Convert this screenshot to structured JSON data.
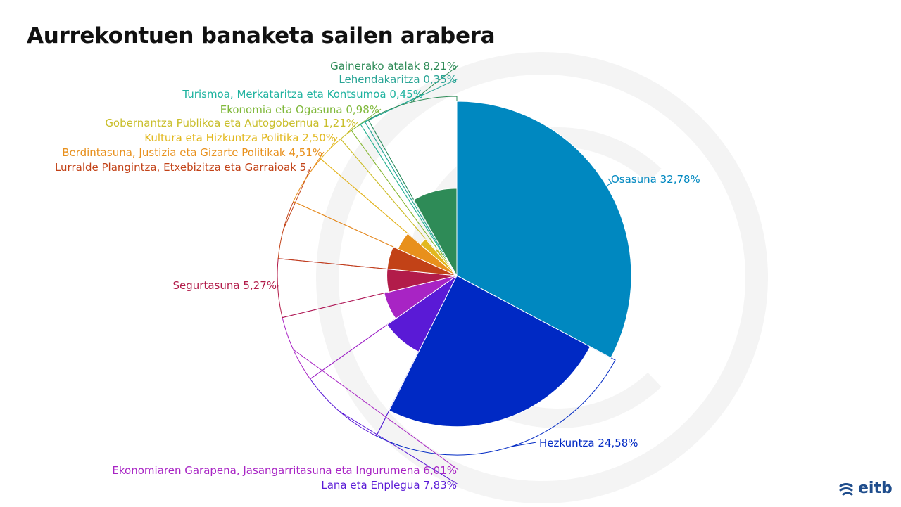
{
  "title": "Aurrekontuen banaketa sailen arabera",
  "brand": "eitb",
  "chart_data": {
    "type": "pie",
    "variant": "polar-area",
    "title": "Aurrekontuen banaketa sailen arabera",
    "unit": "%",
    "slices": [
      {
        "label": "Osasuna 32,78%",
        "name": "Osasuna",
        "value": 32.78,
        "color": "#0088c0"
      },
      {
        "label": "Hezkuntza 24,58%",
        "name": "Hezkuntza",
        "value": 24.58,
        "color": "#0029c4"
      },
      {
        "label": "Lana eta Enplegua 7,83%",
        "name": "Lana eta Enplegua",
        "value": 7.83,
        "color": "#5a1ad6"
      },
      {
        "label": "Ekonomiaren Garapena, Jasangarritasuna eta Ingurumena 6,01%",
        "name": "Ekonomiaren Garapena, Jasangarritasuna eta Ingurumena",
        "value": 6.01,
        "color": "#a824c4"
      },
      {
        "label": "Segurtasuna 5,27%",
        "name": "Segurtasuna",
        "value": 5.27,
        "color": "#b21c4a"
      },
      {
        "label": "Lurralde Plangintza, Etxebizitza eta Garraioak 5,",
        "name": "Lurralde Plangintza, Etxebizitza eta Garraioak",
        "value": 5.26,
        "color": "#c24217"
      },
      {
        "label": "Berdintasuna, Justizia eta Gizarte Politikak 4,51%",
        "name": "Berdintasuna, Justizia eta Gizarte Politikak",
        "value": 4.51,
        "color": "#e8901c"
      },
      {
        "label": "Kultura eta Hizkuntza Politika 2,50%",
        "name": "Kultura eta Hizkuntza Politika",
        "value": 2.5,
        "color": "#e2b81e"
      },
      {
        "label": "Gobernantza Publikoa eta Autogobernua 1,21%",
        "name": "Gobernantza Publikoa eta Autogobernua",
        "value": 1.21,
        "color": "#c9be2a"
      },
      {
        "label": "Ekonomia eta Ogasuna 0,98%",
        "name": "Ekonomia eta Ogasuna",
        "value": 0.98,
        "color": "#7fb83a"
      },
      {
        "label": "Turismoa, Merkataritza eta Kontsumoa 0,45%",
        "name": "Turismoa, Merkataritza eta Kontsumoa",
        "value": 0.45,
        "color": "#1fb3a0"
      },
      {
        "label": "Lehendakaritza 0,35%",
        "name": "Lehendakaritza",
        "value": 0.35,
        "color": "#2aa596"
      },
      {
        "label": "Gainerako atalak  8,21%",
        "name": "Gainerako atalak",
        "value": 8.21,
        "color": "#2e8b57"
      }
    ]
  }
}
